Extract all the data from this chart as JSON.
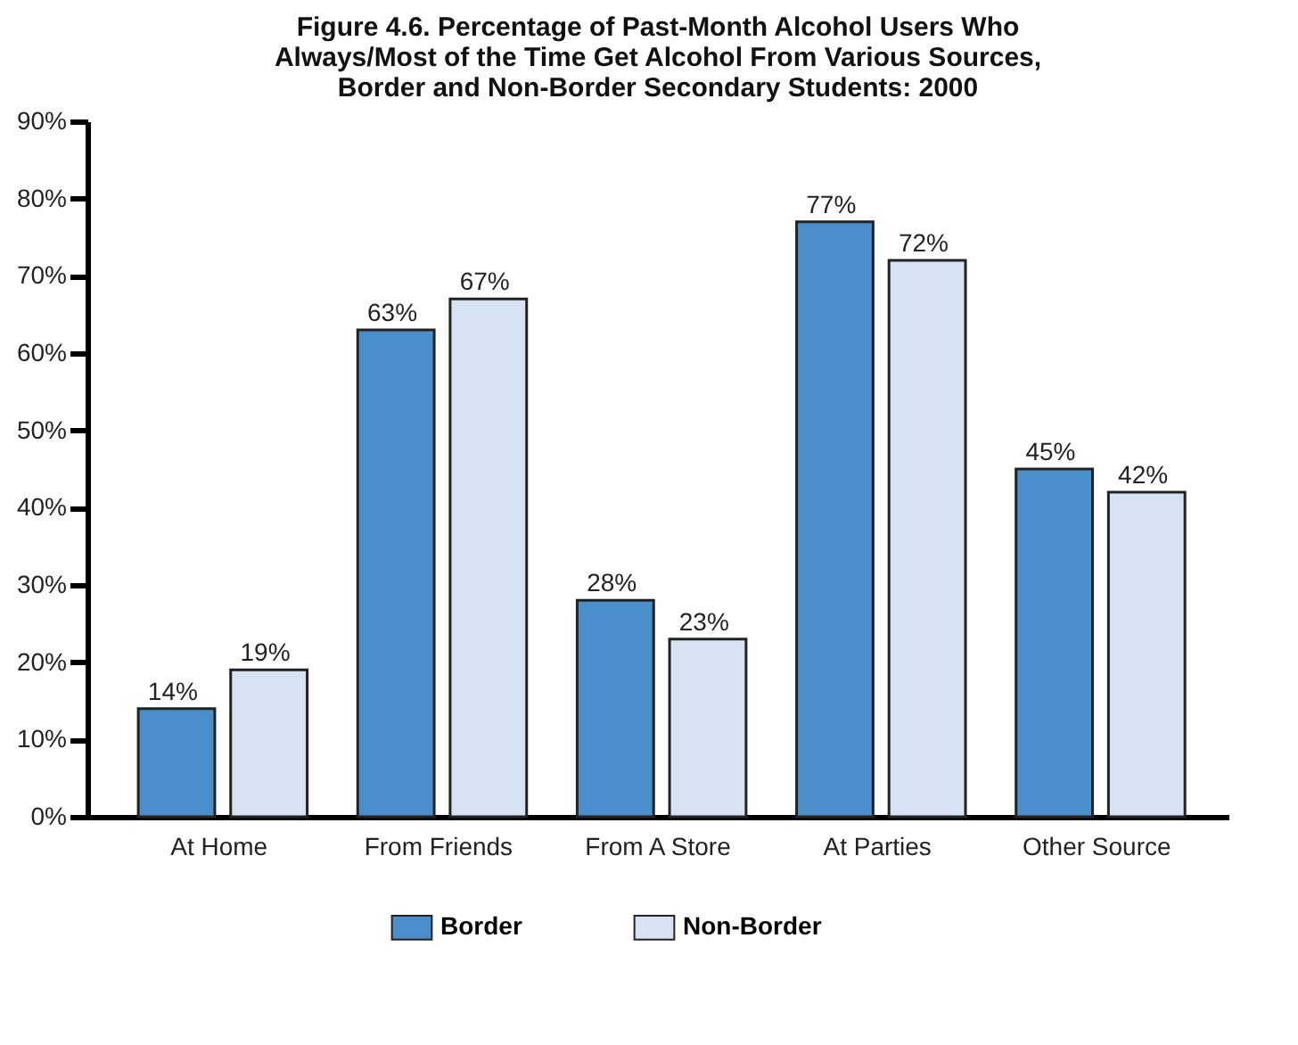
{
  "chart_data": {
    "type": "bar",
    "title": "Figure 4.6. Percentage of Past-Month Alcohol Users Who\nAlways/Most of the Time Get Alcohol From Various Sources,\nBorder and Non-Border Secondary Students: 2000",
    "categories": [
      "At Home",
      "From Friends",
      "From A Store",
      "At Parties",
      "Other Source"
    ],
    "series": [
      {
        "name": "Border",
        "color": "#4a8ecb",
        "values": [
          14,
          63,
          28,
          77,
          45
        ],
        "value_labels": [
          "14%",
          "63%",
          "28%",
          "77%",
          "45%"
        ]
      },
      {
        "name": "Non-Border",
        "color": "#d7e2f2",
        "values": [
          19,
          67,
          23,
          72,
          42
        ],
        "value_labels": [
          "19%",
          "67%",
          "23%",
          "72%",
          "42%"
        ]
      }
    ],
    "ylim": [
      0,
      90
    ],
    "yticks": [
      {
        "value": 0,
        "label": "0%"
      },
      {
        "value": 10,
        "label": "10%"
      },
      {
        "value": 20,
        "label": "20%"
      },
      {
        "value": 30,
        "label": "30%"
      },
      {
        "value": 40,
        "label": "40%"
      },
      {
        "value": 50,
        "label": "50%"
      },
      {
        "value": 60,
        "label": "60%"
      },
      {
        "value": 70,
        "label": "70%"
      },
      {
        "value": 80,
        "label": "80%"
      },
      {
        "value": 90,
        "label": "90%"
      }
    ],
    "grid": false,
    "legend": "bottom"
  }
}
